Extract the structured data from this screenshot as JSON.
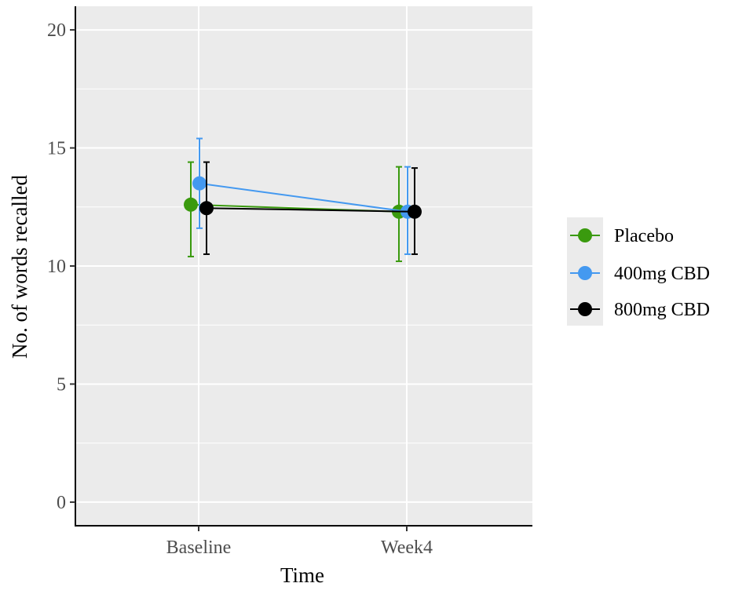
{
  "chart_data": {
    "type": "line",
    "title": "",
    "xlabel": "Time",
    "ylabel": "No. of words recalled",
    "categories": [
      "Baseline",
      "Week4"
    ],
    "ylim": [
      -1,
      21
    ],
    "yticks": [
      0,
      5,
      10,
      15,
      20
    ],
    "grid": true,
    "legend_position": "right",
    "series": [
      {
        "name": "Placebo",
        "color": "#3a9a0e",
        "values": [
          12.6,
          12.3
        ],
        "error_low": [
          10.4,
          10.2
        ],
        "error_high": [
          14.4,
          14.2
        ]
      },
      {
        "name": "400mg CBD",
        "color": "#4499f0",
        "values": [
          13.5,
          12.3
        ],
        "error_low": [
          11.6,
          10.5
        ],
        "error_high": [
          15.4,
          14.2
        ]
      },
      {
        "name": "800mg CBD",
        "color": "#000000",
        "values": [
          12.45,
          12.3
        ],
        "error_low": [
          10.5,
          10.5
        ],
        "error_high": [
          14.4,
          14.15
        ]
      }
    ]
  },
  "colors": {
    "panel_background": "#ebebeb",
    "grid_major": "#ffffff",
    "axis_line": "#000000"
  }
}
